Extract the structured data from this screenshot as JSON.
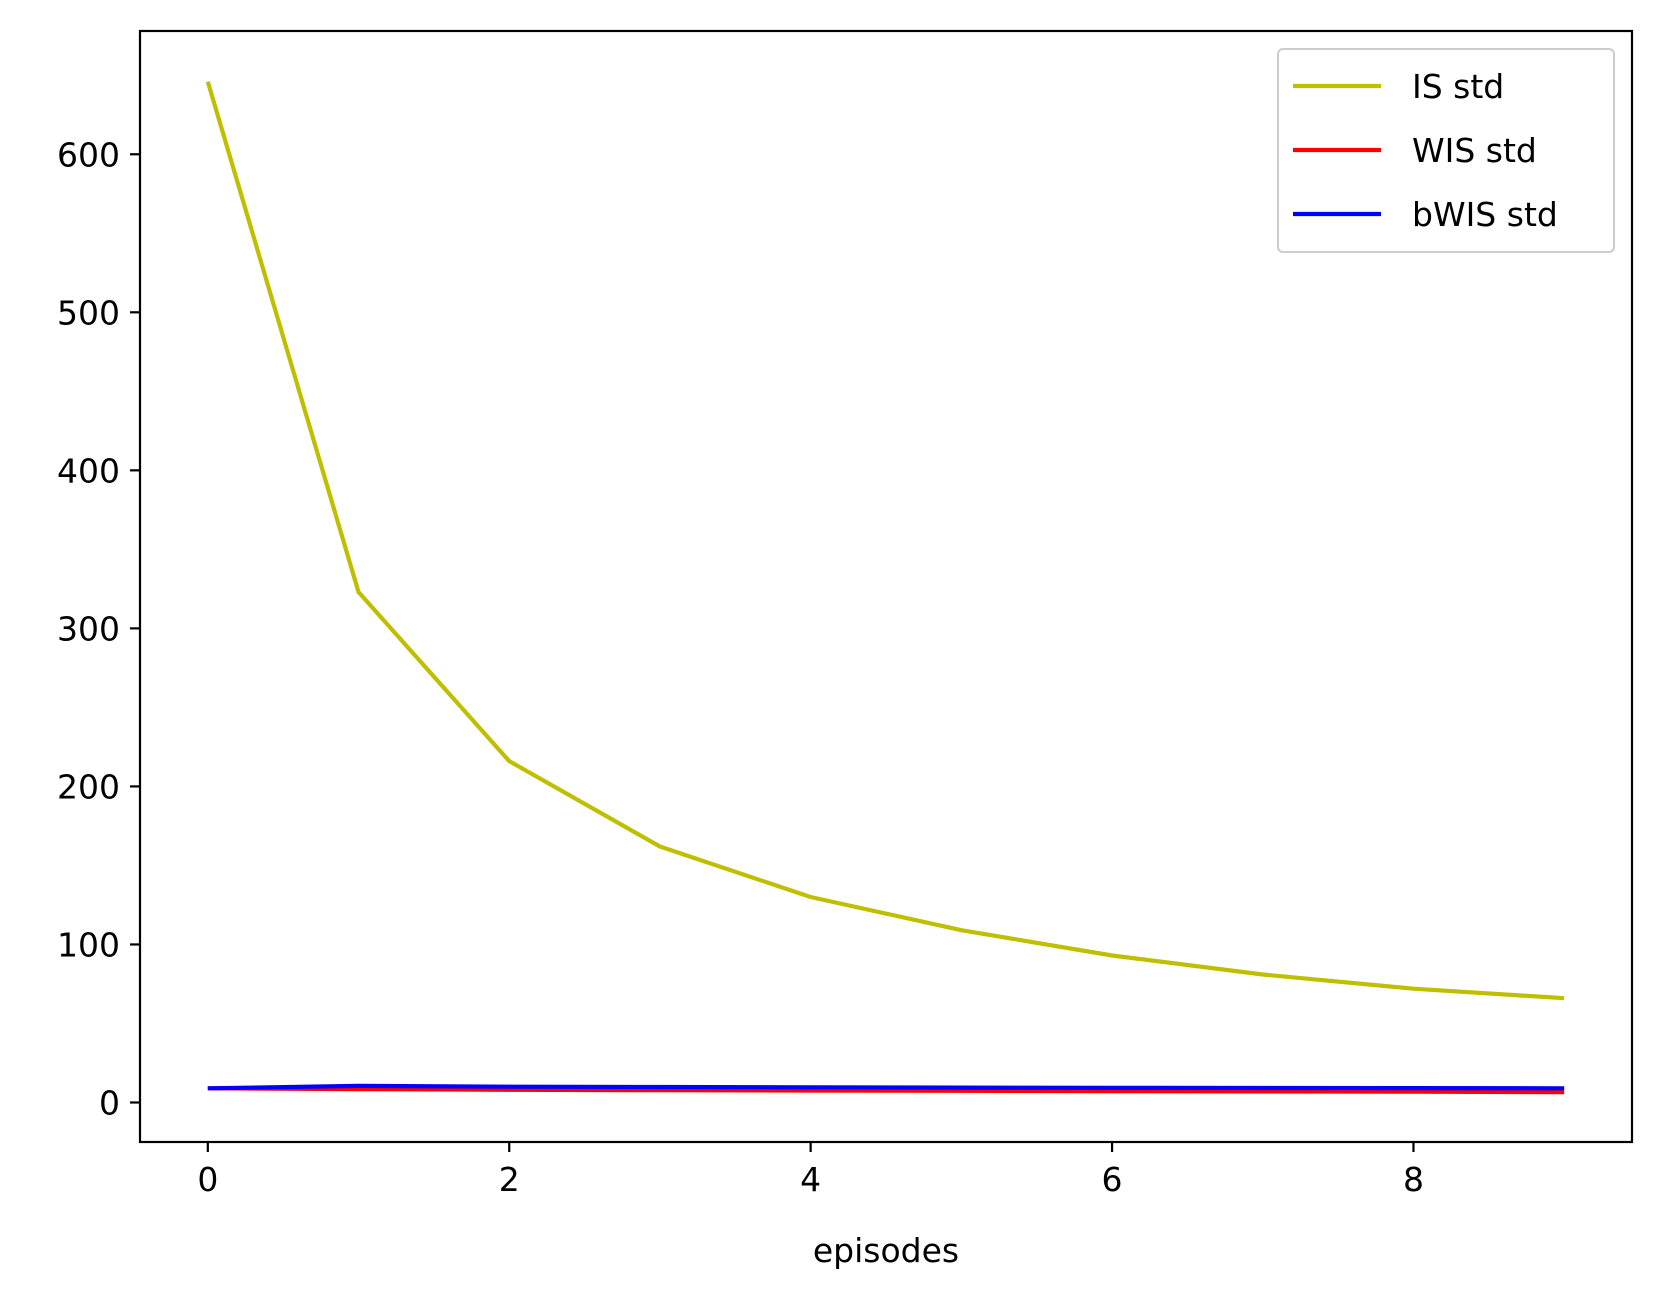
{
  "chart_data": {
    "type": "line",
    "title": "",
    "xlabel": "episodes",
    "ylabel": "",
    "xlim": [
      -0.45,
      9.45
    ],
    "ylim": [
      -25,
      678
    ],
    "xticks": [
      0,
      2,
      4,
      6,
      8
    ],
    "xtick_labels": [
      "0",
      "2",
      "4",
      "6",
      "8"
    ],
    "yticks": [
      0,
      100,
      200,
      300,
      400,
      500,
      600
    ],
    "ytick_labels": [
      "0",
      "100",
      "200",
      "300",
      "400",
      "500",
      "600"
    ],
    "grid": false,
    "legend_position": "top-right",
    "x": [
      0,
      1,
      2,
      3,
      4,
      5,
      6,
      7,
      8,
      9
    ],
    "series": [
      {
        "name": "IS std",
        "color": "#bfbf00",
        "values": [
          646,
          323,
          216,
          162,
          130,
          109,
          93,
          81,
          72,
          66
        ]
      },
      {
        "name": "WIS std",
        "color": "#ff0000",
        "values": [
          9,
          8.5,
          8,
          7.8,
          7.6,
          7.4,
          7.2,
          7,
          6.8,
          6.6
        ]
      },
      {
        "name": "bWIS std",
        "color": "#0000ff",
        "values": [
          9,
          10.5,
          10,
          9.8,
          9.6,
          9.4,
          9.3,
          9.2,
          9.1,
          9.0
        ]
      }
    ]
  }
}
